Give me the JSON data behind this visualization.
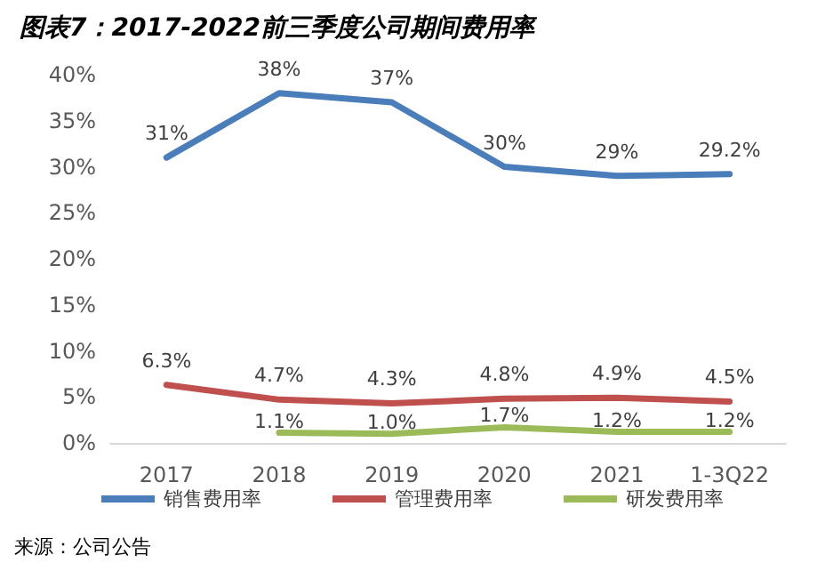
{
  "chart_data": {
    "type": "line",
    "title": "图表7：2017-2022前三季度公司期间费用率",
    "categories": [
      "2017",
      "2018",
      "2019",
      "2020",
      "2021",
      "1-3Q22"
    ],
    "series": [
      {
        "name": "销售费用率",
        "color": "#4a7ebb",
        "values": [
          31,
          38,
          37,
          30,
          29,
          29.2
        ],
        "value_labels": [
          "31%",
          "38%",
          "37%",
          "30%",
          "29%",
          "29.2%"
        ]
      },
      {
        "name": "管理费用率",
        "color": "#c0504d",
        "values": [
          6.3,
          4.7,
          4.3,
          4.8,
          4.9,
          4.5
        ],
        "value_labels": [
          "6.3%",
          "4.7%",
          "4.3%",
          "4.8%",
          "4.9%",
          "4.5%"
        ]
      },
      {
        "name": "研发费用率",
        "color": "#9bbb59",
        "values": [
          null,
          1.1,
          1.0,
          1.7,
          1.2,
          1.2
        ],
        "value_labels": [
          null,
          "1.1%",
          "1.0%",
          "1.7%",
          "1.2%",
          "1.2%"
        ]
      }
    ],
    "ylim": [
      0,
      40
    ],
    "yticks": [
      {
        "value": 0,
        "label": "0%"
      },
      {
        "value": 5,
        "label": "5%"
      },
      {
        "value": 10,
        "label": "10%"
      },
      {
        "value": 15,
        "label": "15%"
      },
      {
        "value": 20,
        "label": "20%"
      },
      {
        "value": 25,
        "label": "25%"
      },
      {
        "value": 30,
        "label": "30%"
      },
      {
        "value": 35,
        "label": "35%"
      },
      {
        "value": 40,
        "label": "40%"
      }
    ],
    "grid": false,
    "legend": "bottom",
    "marker": "none",
    "line_style": "solid",
    "annotations": [
      "来源：公司公告"
    ]
  }
}
